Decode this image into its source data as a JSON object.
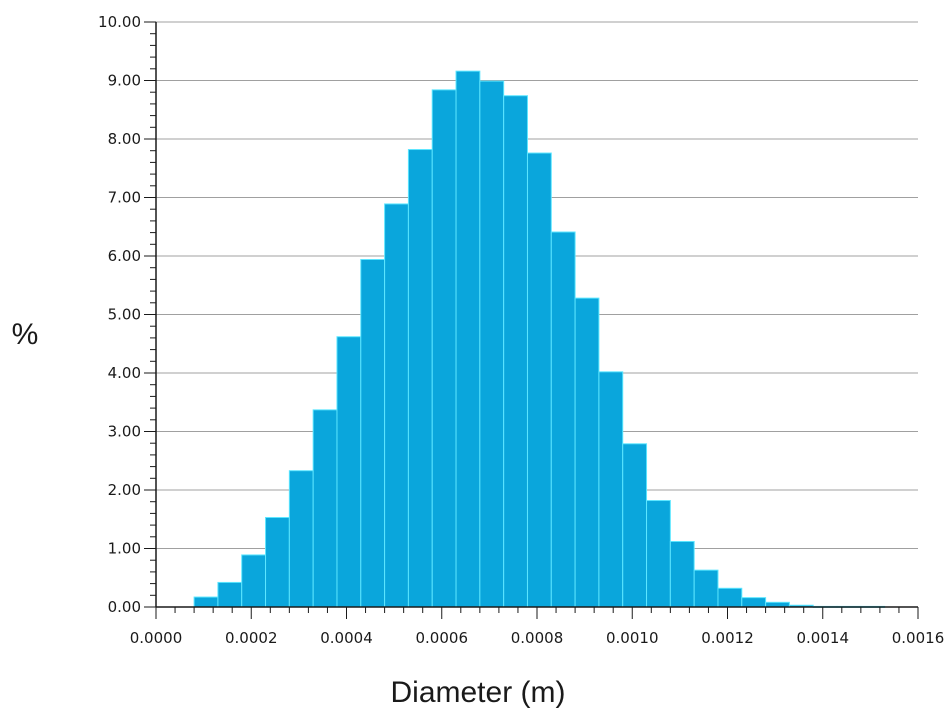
{
  "chart_data": {
    "type": "bar",
    "xlabel": "Diameter (m)",
    "ylabel": "%",
    "xlim": [
      0,
      0.0016
    ],
    "ylim": [
      0,
      10
    ],
    "grid": "horizontal",
    "bin_width": 5e-05,
    "bar_color": "#0aa6dc",
    "bar_edge_color": "#5ce6ff",
    "x_ticks": [
      "0.0000",
      "0.0002",
      "0.0004",
      "0.0006",
      "0.0008",
      "0.0010",
      "0.0012",
      "0.0014",
      "0.0016"
    ],
    "x_tick_values": [
      0,
      0.0002,
      0.0004,
      0.0006,
      0.0008,
      0.001,
      0.0012,
      0.0014,
      0.0016
    ],
    "y_ticks": [
      "0.00",
      "1.00",
      "2.00",
      "3.00",
      "4.00",
      "5.00",
      "6.00",
      "7.00",
      "8.00",
      "9.00",
      "10.00"
    ],
    "y_tick_values": [
      0,
      1,
      2,
      3,
      4,
      5,
      6,
      7,
      8,
      9,
      10
    ],
    "bins": [
      {
        "x0": 8e-05,
        "x1": 0.00013,
        "value": 0.17
      },
      {
        "x0": 0.00013,
        "x1": 0.00018,
        "value": 0.42
      },
      {
        "x0": 0.00018,
        "x1": 0.00023,
        "value": 0.89
      },
      {
        "x0": 0.00023,
        "x1": 0.00028,
        "value": 1.53
      },
      {
        "x0": 0.00028,
        "x1": 0.00033,
        "value": 2.33
      },
      {
        "x0": 0.00033,
        "x1": 0.00038,
        "value": 3.37
      },
      {
        "x0": 0.00038,
        "x1": 0.00043,
        "value": 4.62
      },
      {
        "x0": 0.00043,
        "x1": 0.00048,
        "value": 5.94
      },
      {
        "x0": 0.00048,
        "x1": 0.00053,
        "value": 6.89
      },
      {
        "x0": 0.00053,
        "x1": 0.00058,
        "value": 7.82
      },
      {
        "x0": 0.00058,
        "x1": 0.00063,
        "value": 8.84
      },
      {
        "x0": 0.00063,
        "x1": 0.00068,
        "value": 9.16
      },
      {
        "x0": 0.00068,
        "x1": 0.00073,
        "value": 8.99
      },
      {
        "x0": 0.00073,
        "x1": 0.00078,
        "value": 8.74
      },
      {
        "x0": 0.00078,
        "x1": 0.00083,
        "value": 7.76
      },
      {
        "x0": 0.00083,
        "x1": 0.00088,
        "value": 6.41
      },
      {
        "x0": 0.00088,
        "x1": 0.00093,
        "value": 5.28
      },
      {
        "x0": 0.00093,
        "x1": 0.00098,
        "value": 4.02
      },
      {
        "x0": 0.00098,
        "x1": 0.00103,
        "value": 2.79
      },
      {
        "x0": 0.00103,
        "x1": 0.00108,
        "value": 1.82
      },
      {
        "x0": 0.00108,
        "x1": 0.00113,
        "value": 1.12
      },
      {
        "x0": 0.00113,
        "x1": 0.00118,
        "value": 0.63
      },
      {
        "x0": 0.00118,
        "x1": 0.00123,
        "value": 0.32
      },
      {
        "x0": 0.00123,
        "x1": 0.00128,
        "value": 0.16
      },
      {
        "x0": 0.00128,
        "x1": 0.00133,
        "value": 0.08
      },
      {
        "x0": 0.00133,
        "x1": 0.00138,
        "value": 0.03
      },
      {
        "x0": 0.00138,
        "x1": 0.00143,
        "value": 0.01
      },
      {
        "x0": 0.00143,
        "x1": 0.00148,
        "value": 0.01
      },
      {
        "x0": 0.00148,
        "x1": 0.00153,
        "value": 0.01
      }
    ]
  }
}
